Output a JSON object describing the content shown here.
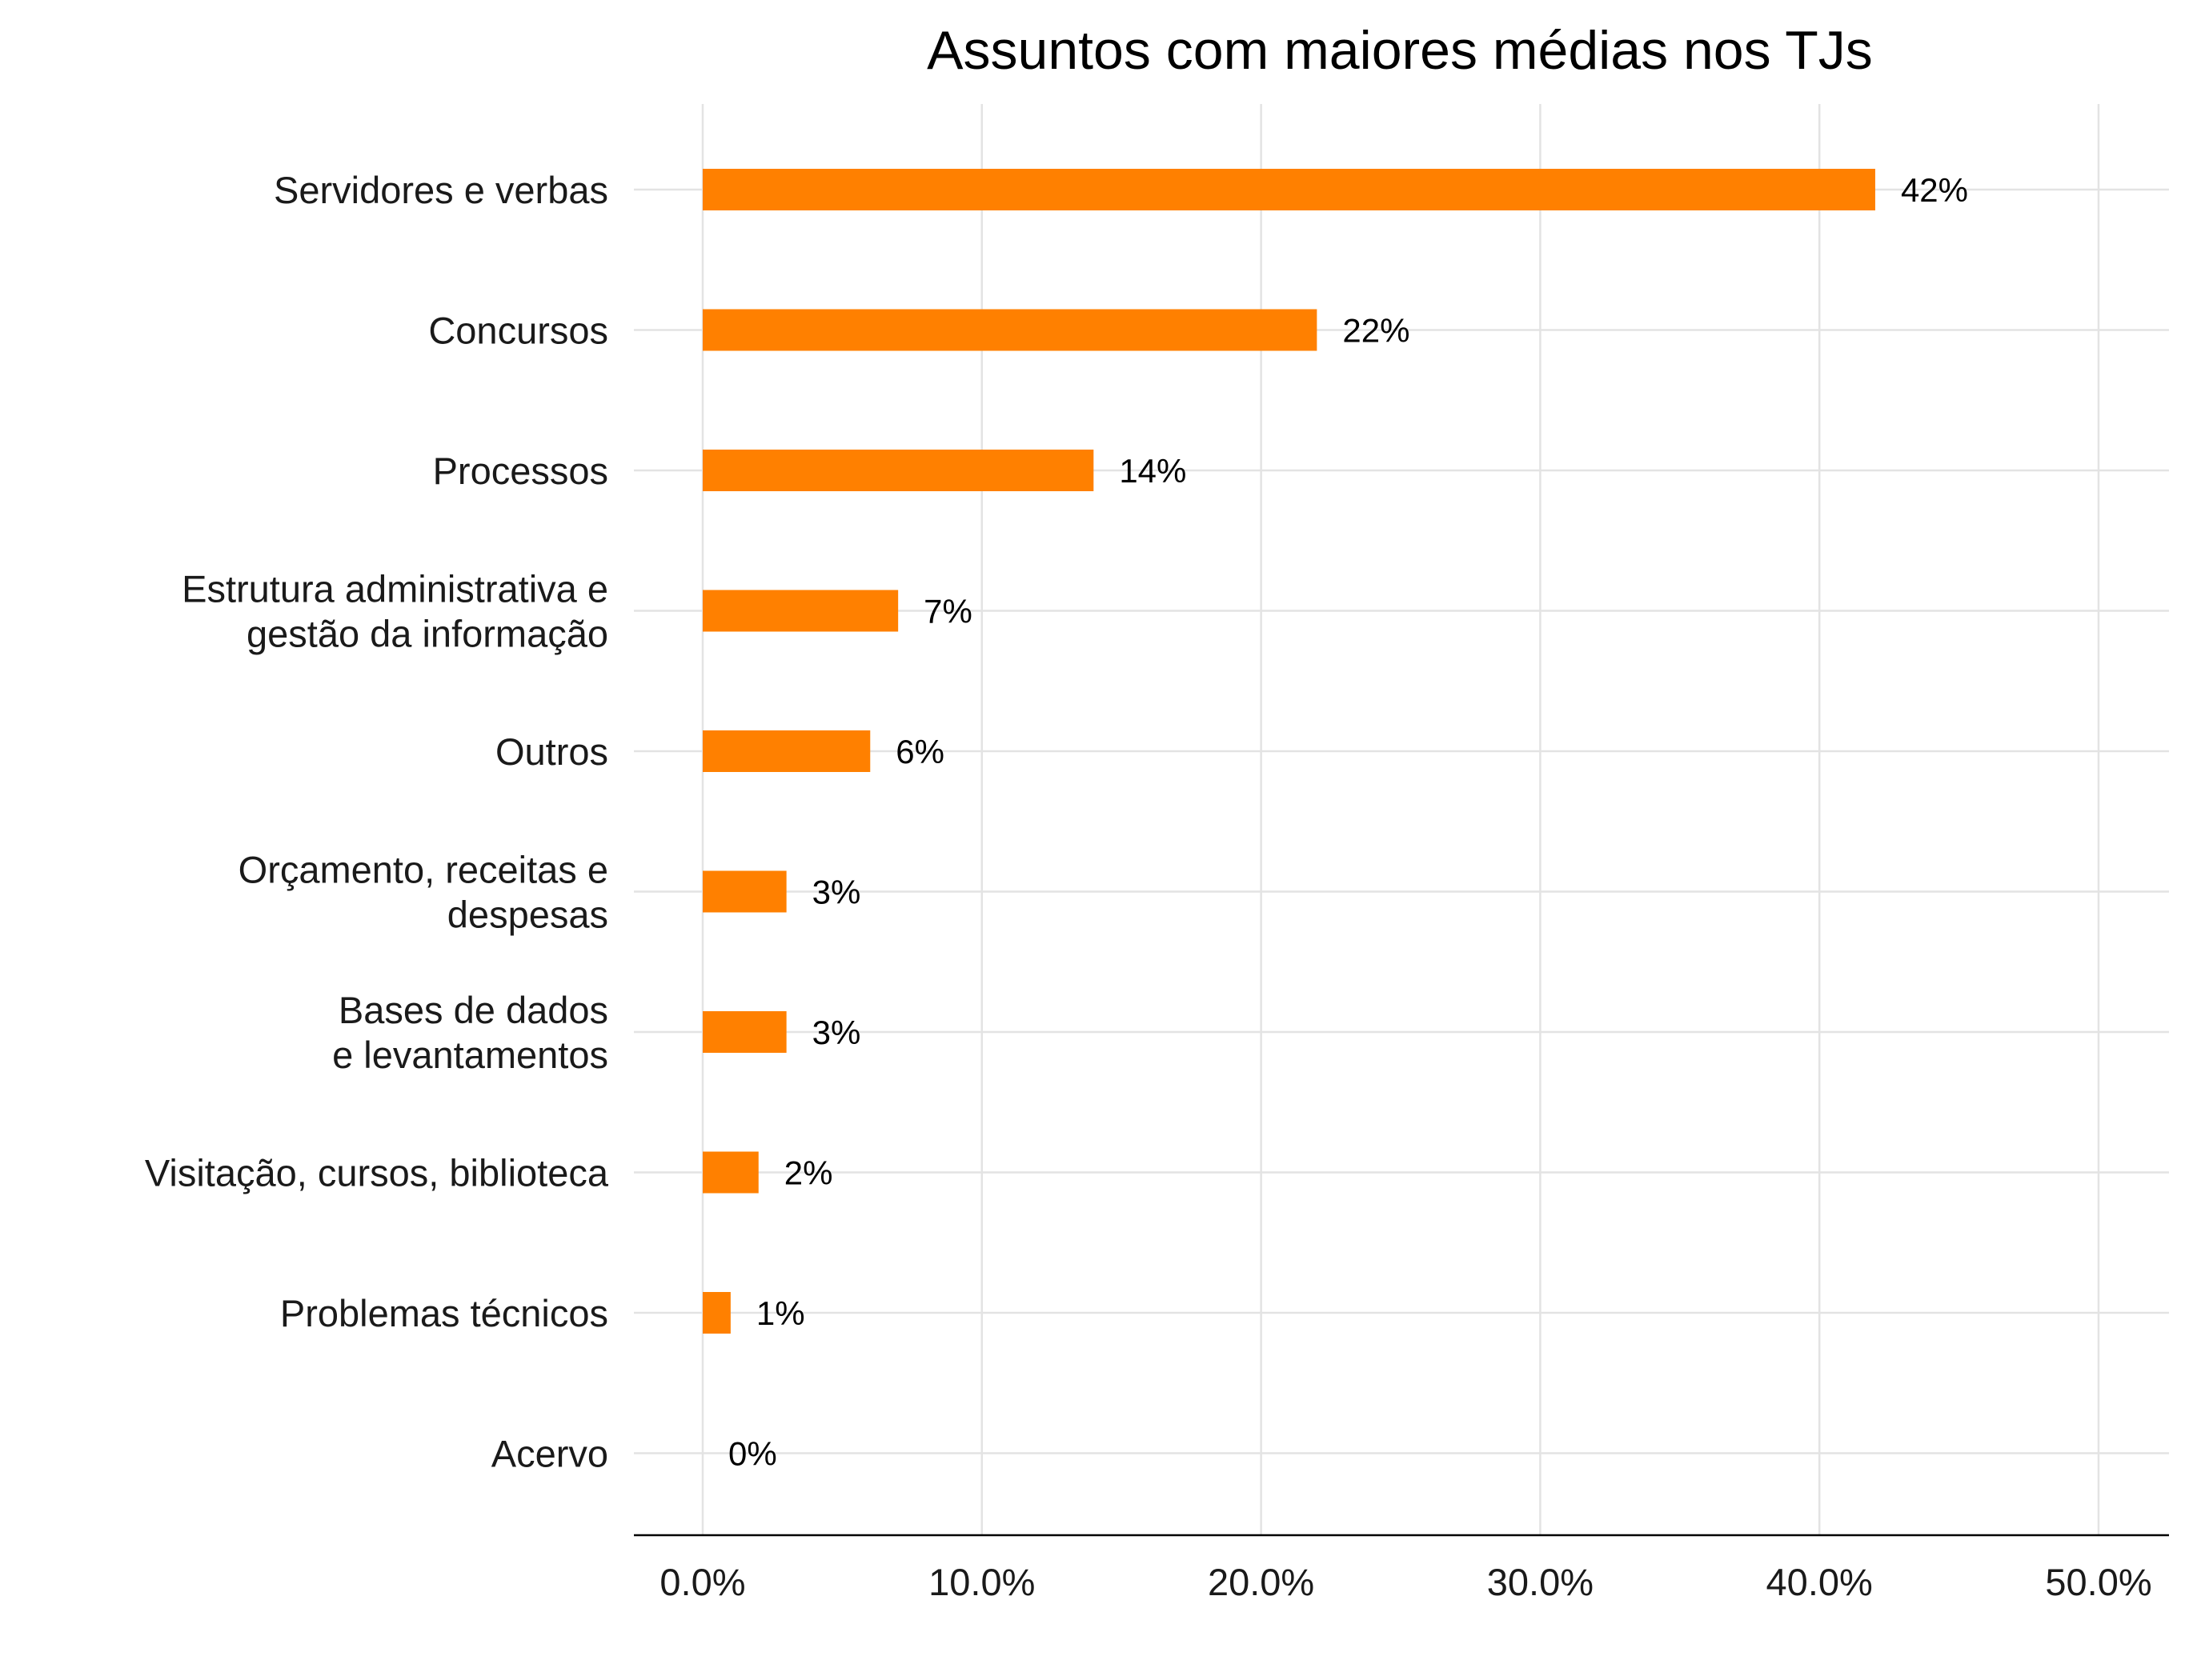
{
  "chart_data": {
    "type": "bar",
    "orientation": "horizontal",
    "title": "Assuntos com maiores médias nos TJs",
    "xlabel": "",
    "ylabel": "",
    "xlim": [
      0,
      50
    ],
    "x_ticks": [
      0,
      10,
      20,
      30,
      40,
      50
    ],
    "x_tick_labels": [
      "0.0%",
      "10.0%",
      "20.0%",
      "30.0%",
      "40.0%",
      "50.0%"
    ],
    "grid": true,
    "legend": "none",
    "bar_color": "#FF8000",
    "categories": [
      [
        "Servidores e verbas"
      ],
      [
        "Concursos"
      ],
      [
        "Processos"
      ],
      [
        "Estrutura administrativa e",
        "gestão da informação"
      ],
      [
        "Outros"
      ],
      [
        "Orçamento, receitas e",
        "despesas"
      ],
      [
        "Bases de dados",
        "e levantamentos"
      ],
      [
        "Visitação, cursos, biblioteca"
      ],
      [
        "Problemas técnicos"
      ],
      [
        "Acervo"
      ]
    ],
    "values": [
      42,
      22,
      14,
      7,
      6,
      3,
      3,
      2,
      1,
      0
    ],
    "data_labels": [
      "42%",
      "22%",
      "14%",
      "7%",
      "6%",
      "3%",
      "3%",
      "2%",
      "1%",
      "0%"
    ]
  }
}
